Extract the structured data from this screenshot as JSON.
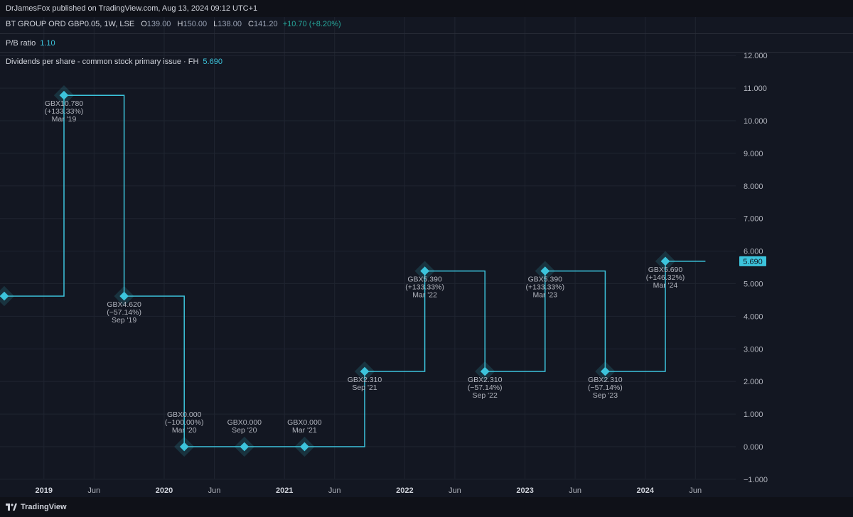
{
  "header": {
    "published": "DrJamesFox published on TradingView.com, Aug 13, 2024 09:12 UTC+1"
  },
  "symbol_row": {
    "name": "BT GROUP ORD GBP0.05, 1W, LSE",
    "o_label": "O",
    "o_value": "139.00",
    "h_label": "H",
    "h_value": "150.00",
    "l_label": "L",
    "l_value": "138.00",
    "c_label": "C",
    "c_value": "141.20",
    "change": "+10.70 (+8.20%)"
  },
  "pb_row": {
    "label": "P/B ratio",
    "value": "1.10"
  },
  "dividend_row": {
    "label": "Dividends per share - common stock primary issue · FH",
    "value": "5.690"
  },
  "footer": {
    "brand": "TradingView"
  },
  "colors": {
    "line": "#3cc4dc",
    "background": "#131722",
    "grid": "#1f2430",
    "text": "#b2b5be",
    "positive": "#26a69a"
  },
  "chart_data": {
    "type": "line",
    "style": "step",
    "series": [
      {
        "name": "Dividends per share - common stock primary issue · FH",
        "x": [
          "2018-09",
          "2019-03",
          "2019-09",
          "2020-03",
          "2020-09",
          "2021-03",
          "2021-09",
          "2022-03",
          "2022-09",
          "2023-03",
          "2023-09",
          "2024-03",
          "2024-07"
        ],
        "values": [
          4.62,
          10.78,
          4.62,
          0.0,
          0.0,
          0.0,
          2.31,
          5.39,
          2.31,
          5.39,
          2.31,
          5.69,
          5.69
        ]
      }
    ],
    "annotations": [
      {
        "x": "2019-03",
        "y": 10.78,
        "lines": [
          "GBX10.780",
          "(+133.33%)",
          "Mar '19"
        ],
        "pos": "below"
      },
      {
        "x": "2019-09",
        "y": 4.62,
        "lines": [
          "GBX4.620",
          "(−57.14%)",
          "Sep '19"
        ],
        "pos": "below"
      },
      {
        "x": "2020-03",
        "y": 0.0,
        "lines": [
          "GBX0.000",
          "(−100.00%)",
          "Mar '20"
        ],
        "pos": "above"
      },
      {
        "x": "2020-09",
        "y": 0.0,
        "lines": [
          "GBX0.000",
          "Sep '20"
        ],
        "pos": "above"
      },
      {
        "x": "2021-03",
        "y": 0.0,
        "lines": [
          "GBX0.000",
          "Mar '21"
        ],
        "pos": "above"
      },
      {
        "x": "2021-09",
        "y": 2.31,
        "lines": [
          "GBX2.310",
          "Sep '21"
        ],
        "pos": "below"
      },
      {
        "x": "2022-03",
        "y": 5.39,
        "lines": [
          "GBX5.390",
          "(+133.33%)",
          "Mar '22"
        ],
        "pos": "below"
      },
      {
        "x": "2022-09",
        "y": 2.31,
        "lines": [
          "GBX2.310",
          "(−57.14%)",
          "Sep '22"
        ],
        "pos": "below"
      },
      {
        "x": "2023-03",
        "y": 5.39,
        "lines": [
          "GBX5.390",
          "(+133.33%)",
          "Mar '23"
        ],
        "pos": "below"
      },
      {
        "x": "2023-09",
        "y": 2.31,
        "lines": [
          "GBX2.310",
          "(−57.14%)",
          "Sep '23"
        ],
        "pos": "below"
      },
      {
        "x": "2024-03",
        "y": 5.69,
        "lines": [
          "GBX5.690",
          "(+146.32%)",
          "Mar '24"
        ],
        "pos": "below"
      }
    ],
    "marker_points": [
      "2018-09",
      "2019-03",
      "2019-09",
      "2020-03",
      "2020-09",
      "2021-03",
      "2021-09",
      "2022-03",
      "2022-09",
      "2023-03",
      "2023-09",
      "2024-03"
    ],
    "y_ticks": [
      "12.000",
      "11.000",
      "10.000",
      "9.000",
      "8.000",
      "7.000",
      "6.000",
      "5.000",
      "4.000",
      "3.000",
      "2.000",
      "1.000",
      "0.000",
      "−1.000"
    ],
    "y_tick_values": [
      12,
      11,
      10,
      9,
      8,
      7,
      6,
      5,
      4,
      3,
      2,
      1,
      0,
      -1
    ],
    "ylim": [
      -1,
      12
    ],
    "x_ticks": [
      {
        "label": "2019",
        "x": "2019-01",
        "bold": true
      },
      {
        "label": "Jun",
        "x": "2019-06",
        "bold": false
      },
      {
        "label": "2020",
        "x": "2020-01",
        "bold": true
      },
      {
        "label": "Jun",
        "x": "2020-06",
        "bold": false
      },
      {
        "label": "2021",
        "x": "2021-01",
        "bold": true
      },
      {
        "label": "Jun",
        "x": "2021-06",
        "bold": false
      },
      {
        "label": "2022",
        "x": "2022-01",
        "bold": true
      },
      {
        "label": "Jun",
        "x": "2022-06",
        "bold": false
      },
      {
        "label": "2023",
        "x": "2023-01",
        "bold": true
      },
      {
        "label": "Jun",
        "x": "2023-06",
        "bold": false
      },
      {
        "label": "2024",
        "x": "2024-01",
        "bold": true
      },
      {
        "label": "Jun",
        "x": "2024-06",
        "bold": false
      }
    ],
    "last_value_label": "5.690",
    "last_value": 5.69,
    "grid": true
  }
}
